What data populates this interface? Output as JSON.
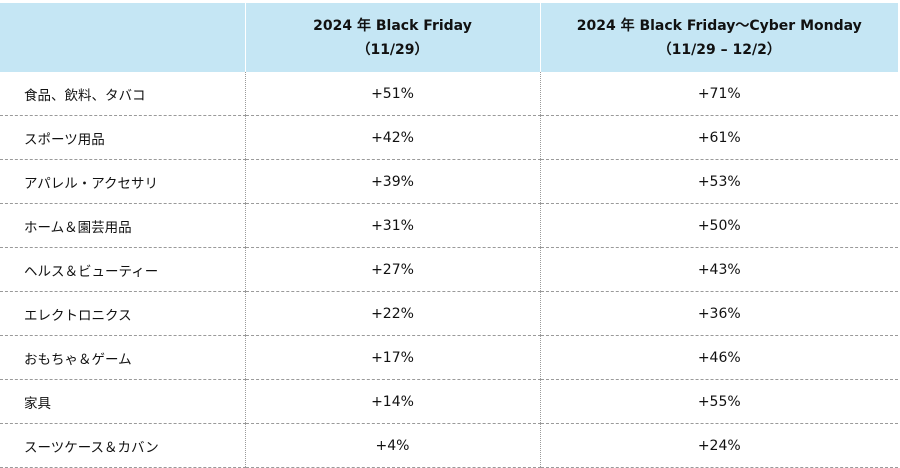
{
  "header": {
    "category": "",
    "black_friday_line1": "2024 年  Black Friday",
    "black_friday_line2": "（11/29）",
    "cyber_monday_line1": "2024 年 Black Friday〜Cyber Monday",
    "cyber_monday_line2": "（11/29 – 12/2）"
  },
  "rows": [
    {
      "category": "食品、飲料、タバコ",
      "black_friday": "+51%",
      "cyber_monday": "+71%"
    },
    {
      "category": "スポーツ用品",
      "black_friday": "+42%",
      "cyber_monday": "+61%"
    },
    {
      "category": "アパレル・アクセサリ",
      "black_friday": "+39%",
      "cyber_monday": "+53%"
    },
    {
      "category": "ホーム＆園芸用品",
      "black_friday": "+31%",
      "cyber_monday": "+50%"
    },
    {
      "category": "ヘルス＆ビューティー",
      "black_friday": "+27%",
      "cyber_monday": "+43%"
    },
    {
      "category": "エレクトロニクス",
      "black_friday": "+22%",
      "cyber_monday": "+36%"
    },
    {
      "category": "おもちゃ＆ゲーム",
      "black_friday": "+17%",
      "cyber_monday": "+46%"
    },
    {
      "category": "家具",
      "black_friday": "+14%",
      "cyber_monday": "+55%"
    },
    {
      "category": "スーツケース＆カバン",
      "black_friday": "+4%",
      "cyber_monday": "+24%"
    }
  ],
  "colors": {
    "header_background": "#c5e6f4",
    "divider": "#9a9a9a"
  }
}
